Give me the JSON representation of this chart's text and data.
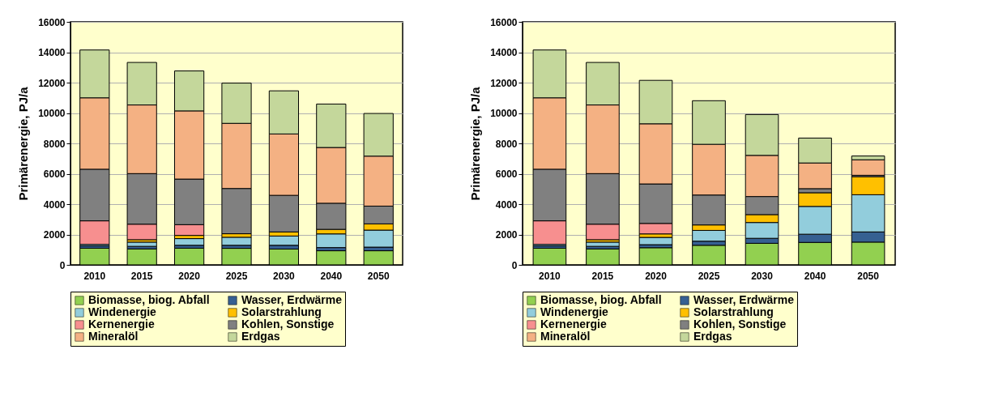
{
  "chart_data": [
    {
      "type": "bar",
      "stacked": true,
      "ylabel": "Primärenergie, PJ/a",
      "categories": [
        "2010",
        "2015",
        "2020",
        "2025",
        "2030",
        "2040",
        "2050"
      ],
      "ylim": [
        0,
        16000
      ],
      "yticks": [
        0,
        2000,
        4000,
        6000,
        8000,
        10000,
        12000,
        14000,
        16000
      ],
      "grid": "y",
      "legend": "bottom",
      "series": [
        {
          "name": "Biomasse, biog. Abfall",
          "color": "#92d050",
          "values": [
            1100,
            1050,
            1100,
            1090,
            1040,
            930,
            930
          ]
        },
        {
          "name": "Wasser, Erdwärme",
          "color": "#366092",
          "values": [
            150,
            170,
            190,
            200,
            250,
            210,
            240
          ]
        },
        {
          "name": "Windenergie",
          "color": "#92cddc",
          "values": [
            100,
            280,
            440,
            530,
            610,
            900,
            1120
          ]
        },
        {
          "name": "Solarstrahlung",
          "color": "#ffc000",
          "values": [
            null,
            160,
            210,
            230,
            270,
            300,
            410
          ]
        },
        {
          "name": "Kernenergie",
          "color": "#f78f8f",
          "values": [
            1550,
            1020,
            710,
            0,
            0,
            0,
            0
          ]
        },
        {
          "name": "Kohlen, Sonstige",
          "color": "#808080",
          "values": [
            3400,
            3330,
            3000,
            2980,
            2410,
            1720,
            1170
          ]
        },
        {
          "name": "Mineralöl",
          "color": "#f4b183",
          "values": [
            4700,
            4520,
            4490,
            4290,
            4040,
            3670,
            3290
          ]
        },
        {
          "name": "Erdgas",
          "color": "#c4d79b",
          "values": [
            3150,
            2800,
            2630,
            2650,
            2840,
            2860,
            2810
          ]
        }
      ]
    },
    {
      "type": "bar",
      "stacked": true,
      "ylabel": "Primärenergie, PJ/a",
      "categories": [
        "2010",
        "2015",
        "2020",
        "2025",
        "2030",
        "2040",
        "2050"
      ],
      "ylim": [
        0,
        16000
      ],
      "yticks": [
        0,
        2000,
        4000,
        6000,
        8000,
        10000,
        12000,
        14000,
        16000
      ],
      "grid": "y",
      "legend": "bottom",
      "series": [
        {
          "name": "Biomasse, biog. Abfall",
          "color": "#92d050",
          "values": [
            1100,
            1050,
            1130,
            1290,
            1420,
            1480,
            1500
          ]
        },
        {
          "name": "Wasser, Erdwärme",
          "color": "#366092",
          "values": [
            150,
            170,
            200,
            270,
            330,
            540,
            670
          ]
        },
        {
          "name": "Windenergie",
          "color": "#92cddc",
          "values": [
            100,
            280,
            480,
            710,
            1040,
            1830,
            2450
          ]
        },
        {
          "name": "Solarstrahlung",
          "color": "#ffc000",
          "values": [
            null,
            160,
            230,
            360,
            520,
            900,
            1190
          ]
        },
        {
          "name": "Kernenergie",
          "color": "#f78f8f",
          "values": [
            1550,
            1020,
            690,
            0,
            0,
            0,
            0
          ]
        },
        {
          "name": "Kohlen, Sonstige",
          "color": "#808080",
          "values": [
            3400,
            3330,
            2600,
            1970,
            1190,
            270,
            90
          ]
        },
        {
          "name": "Mineralöl",
          "color": "#f4b183",
          "values": [
            4700,
            4520,
            3960,
            3340,
            2710,
            1690,
            1020
          ]
        },
        {
          "name": "Erdgas",
          "color": "#c4d79b",
          "values": [
            3150,
            2800,
            2860,
            2870,
            2690,
            1640,
            250
          ]
        }
      ]
    }
  ]
}
